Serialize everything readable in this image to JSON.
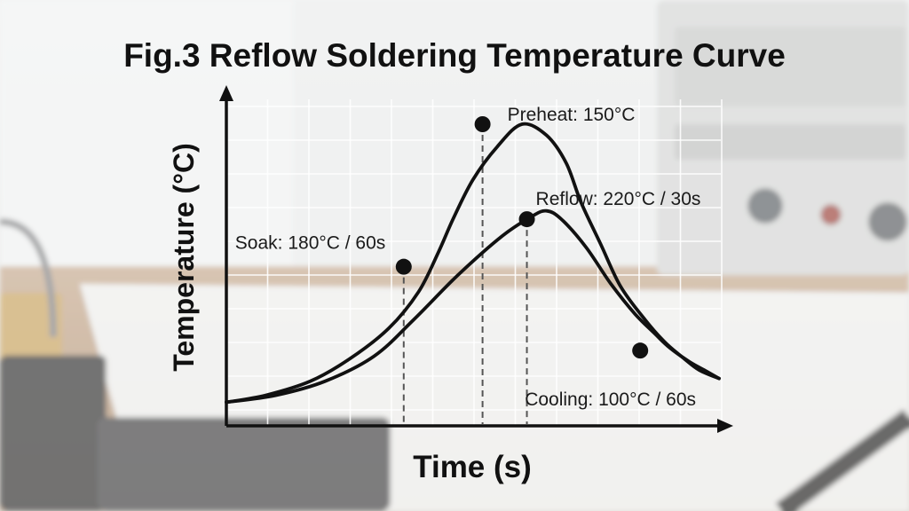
{
  "chart_data": {
    "type": "line",
    "title": "Fig.3 Reflow Soldering Temperature Curve",
    "xlabel": "Time (s)",
    "ylabel": "Temperature (°C)",
    "grid": true,
    "legend": "none",
    "series": [
      {
        "color": "#111111",
        "points": [
          [
            0,
            0.5
          ],
          [
            0.08,
            3
          ],
          [
            0.17,
            8
          ],
          [
            0.25,
            16
          ],
          [
            0.33,
            27
          ],
          [
            0.39,
            40
          ],
          [
            0.43,
            54
          ],
          [
            0.46,
            66
          ],
          [
            0.5,
            80
          ],
          [
            0.55,
            92
          ],
          [
            0.6,
            100
          ],
          [
            0.65,
            96
          ],
          [
            0.69,
            86
          ],
          [
            0.72,
            72
          ],
          [
            0.76,
            57
          ],
          [
            0.8,
            42
          ],
          [
            0.85,
            30
          ],
          [
            0.89,
            22
          ],
          [
            0.93,
            16
          ],
          [
            0.96,
            12
          ],
          [
            1,
            9
          ]
        ]
      },
      {
        "color": "#111111",
        "points": [
          [
            0,
            0.5
          ],
          [
            0.1,
            3
          ],
          [
            0.2,
            8
          ],
          [
            0.3,
            17
          ],
          [
            0.38,
            30
          ],
          [
            0.47,
            46
          ],
          [
            0.56,
            60
          ],
          [
            0.62,
            67
          ],
          [
            0.65,
            69
          ],
          [
            0.68,
            66
          ],
          [
            0.73,
            56
          ],
          [
            0.78,
            43
          ],
          [
            0.83,
            32
          ],
          [
            0.87,
            25
          ],
          [
            0.9,
            20
          ],
          [
            0.94,
            15
          ],
          [
            0.97,
            12
          ],
          [
            1,
            9
          ]
        ]
      }
    ],
    "markers": [
      {
        "x": 0.36,
        "y": 49,
        "label": "Soak: 180°C / 60s",
        "guide": true
      },
      {
        "x": 0.52,
        "y": 100,
        "label": "Preheat: 150°C",
        "guide": true
      },
      {
        "x": 0.61,
        "y": 66,
        "label": "Reflow: 220°C / 30s",
        "guide": true
      },
      {
        "x": 0.84,
        "y": 19,
        "label": "Cooling: 100°C / 60s",
        "guide": false
      }
    ]
  }
}
